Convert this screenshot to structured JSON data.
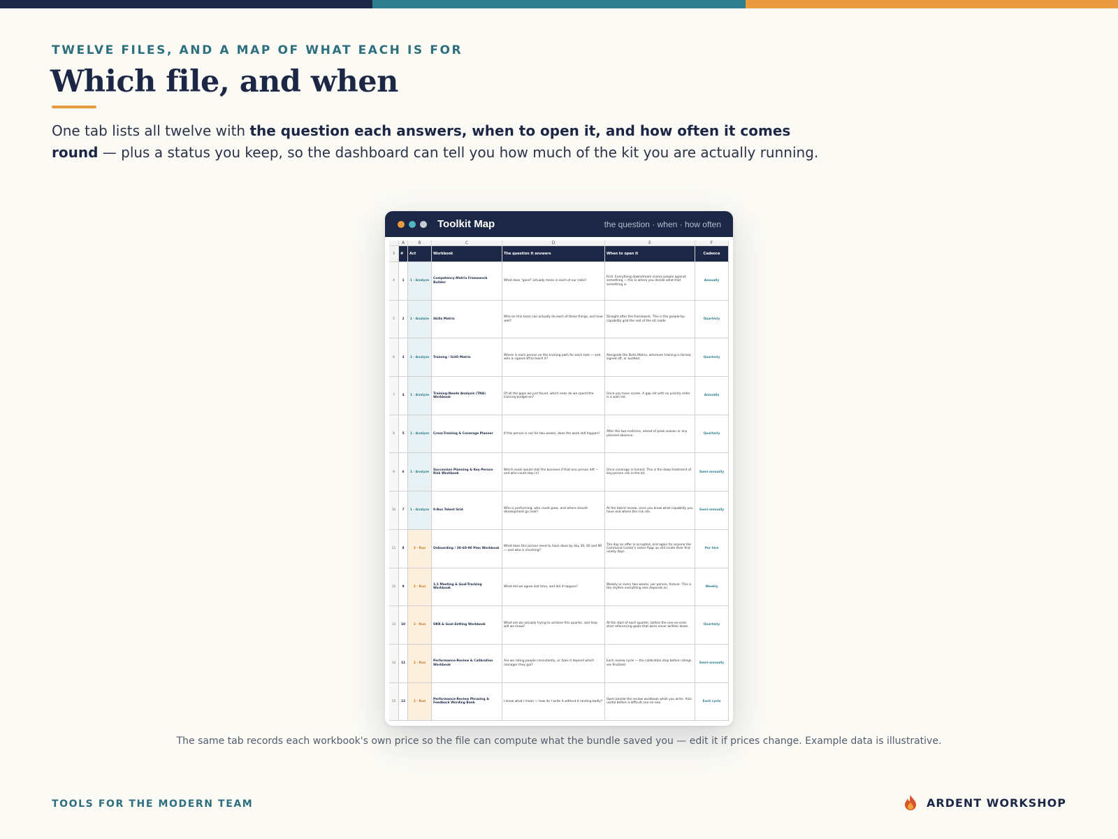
{
  "accent_colors": {
    "navy": "#1b2744",
    "teal": "#2e7f8d",
    "orange": "#e99a3c"
  },
  "header": {
    "eyebrow": "TWELVE FILES, AND A MAP OF WHAT EACH IS FOR",
    "title": "Which file, and when",
    "lead_plain_1": "One tab lists all twelve with ",
    "lead_bold": "the question each answers, when to open it, and how often it comes round",
    "lead_plain_2": " — plus a status you keep, so the dashboard can tell you how much of the kit you are actually running."
  },
  "window": {
    "title": "Toolkit Map",
    "subtitle": "the question · when · how often",
    "dots": [
      "orange-dot",
      "teal-dot",
      "grey-dot"
    ]
  },
  "sheet": {
    "columns": [
      "A",
      "B",
      "C",
      "D",
      "E",
      "F"
    ],
    "header_row_number": "3",
    "headers": {
      "num": "#",
      "act": "Act",
      "workbook": "Workbook",
      "question": "The question it answers",
      "when": "When to open it",
      "cadence": "Cadence"
    },
    "rows": [
      {
        "row": "4",
        "num": "1",
        "act": "1 · Analyze",
        "workbook": "Competency-Matrix Framework Builder",
        "question": "What does \"good\" actually mean in each of our roles?",
        "when": "First. Everything downstream scores people against something — this is where you decide what that something is.",
        "cadence": "Annually"
      },
      {
        "row": "5",
        "num": "2",
        "act": "1 · Analyze",
        "workbook": "Skills Matrix",
        "question": "Who on this team can actually do each of those things, and how well?",
        "when": "Straight after the framework. This is the people-by-capability grid the rest of the kit reads.",
        "cadence": "Quarterly"
      },
      {
        "row": "6",
        "num": "3",
        "act": "1 · Analyze",
        "workbook": "Training / ILUO Matrix",
        "question": "Where is each person on the training path for each task — and who is signed off to teach it?",
        "when": "Alongside the Skills Matrix, wherever training is formal, signed off, or audited.",
        "cadence": "Quarterly"
      },
      {
        "row": "7",
        "num": "4",
        "act": "1 · Analyze",
        "workbook": "Training-Needs Analysis (TNA) Workbook",
        "question": "Of all the gaps we just found, which ones do we spend the training budget on?",
        "when": "Once you have scores. A gap list with no priority order is a wish list.",
        "cadence": "Annually"
      },
      {
        "row": "8",
        "num": "5",
        "act": "1 · Analyze",
        "workbook": "Cross-Training & Coverage Planner",
        "question": "If this person is out for two weeks, does the work still happen?",
        "when": "After the two matrices, ahead of peak season or any planned absence.",
        "cadence": "Quarterly"
      },
      {
        "row": "9",
        "num": "6",
        "act": "1 · Analyze",
        "workbook": "Succession Planning & Key-Person Risk Workbook",
        "question": "Which seats would stall the business if that one person left — and who could step in?",
        "when": "Once coverage is honest. This is the deep treatment of key-person risk in the kit.",
        "cadence": "Semi-annually"
      },
      {
        "row": "10",
        "num": "7",
        "act": "1 · Analyze",
        "workbook": "9-Box Talent Grid",
        "question": "Who is performing, who could grow, and where should development go next?",
        "when": "At the talent review, once you know what capability you have and where the risk sits.",
        "cadence": "Semi-annually"
      },
      {
        "row": "11",
        "num": "8",
        "act": "2 · Run",
        "workbook": "Onboarding / 30-60-90 Plan Workbook",
        "question": "What does this person need to have done by day 30, 60 and 90 — and who is checking?",
        "when": "The day an offer is accepted, and again for anyone the Command Center's roster flags as still inside their first ninety days.",
        "cadence": "Per hire"
      },
      {
        "row": "12",
        "num": "9",
        "act": "2 · Run",
        "workbook": "1:1 Meeting & Goal-Tracking Workbook",
        "question": "What did we agree last time, and did it happen?",
        "when": "Weekly or every two weeks, per person, forever. This is the rhythm everything else depends on.",
        "cadence": "Weekly"
      },
      {
        "row": "13",
        "num": "10",
        "act": "2 · Run",
        "workbook": "OKR & Goal-Setting Workbook",
        "question": "What are we actually trying to achieve this quarter, and how will we know?",
        "when": "At the start of each quarter, before the one-on-ones start referencing goals that were never written down.",
        "cadence": "Quarterly"
      },
      {
        "row": "14",
        "num": "11",
        "act": "2 · Run",
        "workbook": "Performance-Review & Calibration Workbook",
        "question": "Are we rating people consistently, or does it depend which manager they got?",
        "when": "Each review cycle — the calibration step before ratings are finalized.",
        "cadence": "Semi-annually"
      },
      {
        "row": "15",
        "num": "12",
        "act": "2 · Run",
        "workbook": "Performance-Review Phrasing & Feedback Wording Bank",
        "question": "I know what I mean — how do I write it without it landing badly?",
        "when": "Open beside the review workbook while you write. Also useful before a difficult one-on-one.",
        "cadence": "Each cycle"
      }
    ]
  },
  "caption": "The same tab records each workbook's own price so the file can compute what the bundle saved you — edit it if prices change. Example data is illustrative.",
  "footer": {
    "left": "TOOLS FOR THE MODERN TEAM",
    "brand": "ARDENT WORKSHOP",
    "brand_icon": "flame-icon"
  }
}
